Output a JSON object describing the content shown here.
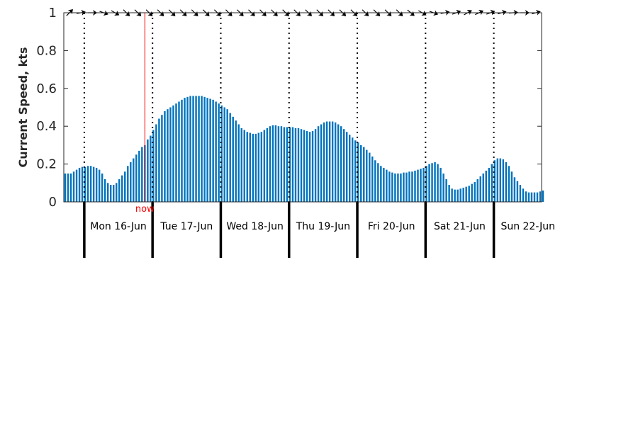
{
  "chart_data": {
    "type": "bar",
    "ylabel": "Current Speed, kts",
    "ylim": [
      0,
      1
    ],
    "yticks": [
      0,
      0.2,
      0.4,
      0.6,
      0.8,
      1
    ],
    "ytick_labels": [
      "0",
      "0.2",
      "0.4",
      "0.6",
      "0.8",
      "1"
    ],
    "x_unit": "hours since start of plotted window",
    "xlim": [
      0,
      168
    ],
    "day_labels": [
      "Mon 16-Jun",
      "Tue 17-Jun",
      "Wed 18-Jun",
      "Thu 19-Jun",
      "Fri 20-Jun",
      "Sat 21-Jun",
      "Sun 22-Jun"
    ],
    "day_boundaries": [
      7.2,
      31.2,
      55.2,
      79.2,
      103.2,
      127.2,
      151.2
    ],
    "now": {
      "label": "now",
      "x": 28.5,
      "color": "#ff0000"
    },
    "bar_color": "#0072bd",
    "series": [
      {
        "x_step": 1,
        "values": [
          0.15,
          0.15,
          0.15,
          0.16,
          0.17,
          0.18,
          0.185,
          0.185,
          0.19,
          0.19,
          0.185,
          0.18,
          0.17,
          0.15,
          0.12,
          0.1,
          0.09,
          0.09,
          0.1,
          0.12,
          0.14,
          0.16,
          0.19,
          0.21,
          0.23,
          0.25,
          0.27,
          0.29,
          0.3,
          0.33,
          0.35,
          0.38,
          0.41,
          0.44,
          0.46,
          0.48,
          0.49,
          0.5,
          0.51,
          0.52,
          0.53,
          0.54,
          0.55,
          0.555,
          0.56,
          0.56,
          0.56,
          0.56,
          0.56,
          0.555,
          0.55,
          0.545,
          0.54,
          0.53,
          0.52,
          0.51,
          0.5,
          0.49,
          0.47,
          0.45,
          0.43,
          0.41,
          0.39,
          0.38,
          0.37,
          0.365,
          0.36,
          0.36,
          0.365,
          0.37,
          0.38,
          0.39,
          0.4,
          0.405,
          0.405,
          0.4,
          0.4,
          0.395,
          0.395,
          0.395,
          0.395,
          0.39,
          0.39,
          0.385,
          0.38,
          0.375,
          0.37,
          0.375,
          0.385,
          0.4,
          0.41,
          0.42,
          0.425,
          0.425,
          0.425,
          0.42,
          0.41,
          0.4,
          0.385,
          0.37,
          0.355,
          0.34,
          0.325,
          0.315,
          0.3,
          0.29,
          0.275,
          0.26,
          0.24,
          0.22,
          0.205,
          0.19,
          0.18,
          0.17,
          0.16,
          0.155,
          0.15,
          0.15,
          0.15,
          0.155,
          0.155,
          0.16,
          0.16,
          0.165,
          0.17,
          0.175,
          0.18,
          0.19,
          0.2,
          0.205,
          0.21,
          0.2,
          0.18,
          0.15,
          0.12,
          0.09,
          0.07,
          0.065,
          0.065,
          0.07,
          0.075,
          0.08,
          0.085,
          0.095,
          0.105,
          0.12,
          0.135,
          0.15,
          0.165,
          0.18,
          0.2,
          0.22,
          0.23,
          0.23,
          0.225,
          0.21,
          0.19,
          0.16,
          0.13,
          0.11,
          0.09,
          0.07,
          0.055,
          0.05,
          0.05,
          0.05,
          0.05,
          0.055,
          0.06
        ]
      }
    ],
    "direction_arrows": {
      "y": 1.0,
      "x_step": 4,
      "start_x": 2,
      "angles_deg": [
        45,
        10,
        0,
        -20,
        -30,
        -45,
        -45,
        -45,
        -45,
        -45,
        -45,
        -45,
        -45,
        -45,
        -45,
        -45,
        -45,
        -45,
        -45,
        -45,
        -45,
        -45,
        -45,
        -45,
        -45,
        -45,
        -45,
        -45,
        -45,
        -45,
        -40,
        -30,
        -20,
        10,
        20,
        30,
        25,
        20,
        15,
        5,
        0,
        15
      ]
    },
    "grid": false,
    "legend": "none"
  }
}
